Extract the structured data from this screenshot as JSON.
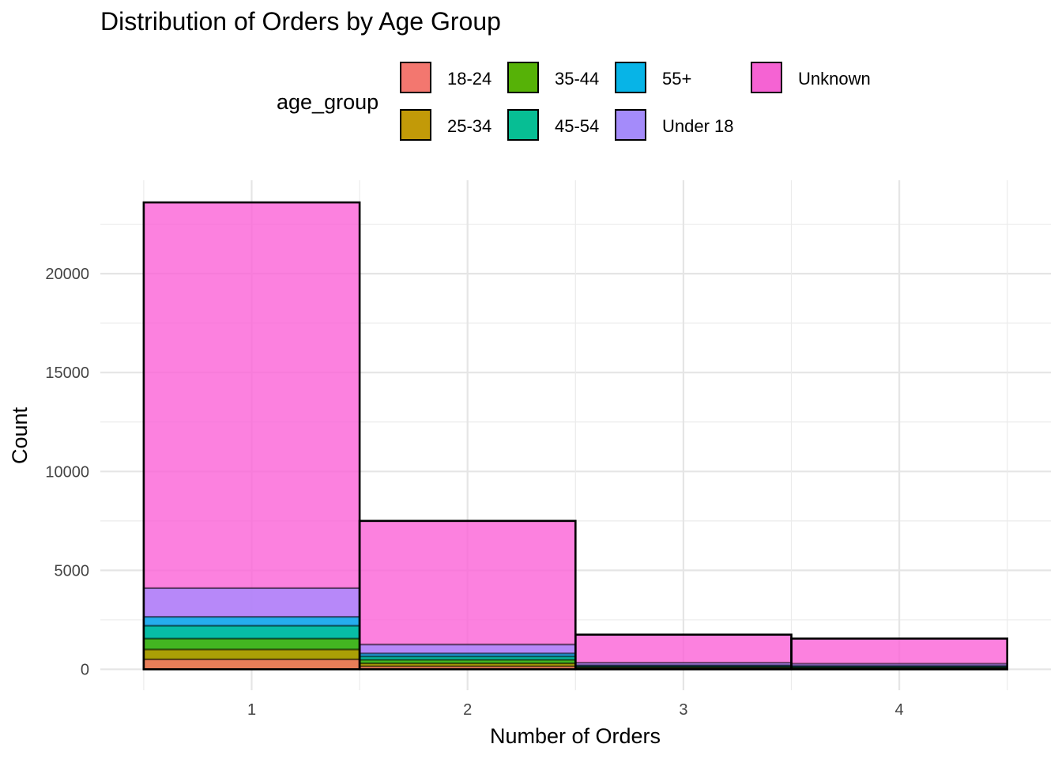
{
  "chart_data": {
    "type": "bar",
    "title": "Distribution of Orders by Age Group",
    "xlabel": "Number of Orders",
    "ylabel": "Count",
    "x_ticks": [
      "1",
      "2",
      "3",
      "4"
    ],
    "y_ticks": [
      "0",
      "5000",
      "10000",
      "15000",
      "20000"
    ],
    "xlim": [
      0.5,
      4.5
    ],
    "ylim": [
      0,
      24000
    ],
    "grid": true,
    "legend": {
      "title": "age_group",
      "placement": "top",
      "items": [
        {
          "label": "18-24",
          "color": "#F8766D"
        },
        {
          "label": "25-34",
          "color": "#C49A00"
        },
        {
          "label": "35-44",
          "color": "#53B400"
        },
        {
          "label": "45-54",
          "color": "#00C094"
        },
        {
          "label": "55+",
          "color": "#00B6EB"
        },
        {
          "label": "Under 18",
          "color": "#A58AFF"
        },
        {
          "label": "Unknown",
          "color": "#FB61D7"
        }
      ]
    },
    "bar_opacity": 0.8,
    "categories": [
      1,
      2,
      3,
      4
    ],
    "series": [
      {
        "name": "Unknown",
        "color": "#FB61D7",
        "values": [
          23600,
          7500,
          1750,
          1550
        ]
      },
      {
        "name": "Under 18",
        "color": "#A58AFF",
        "values": [
          4100,
          1250,
          330,
          280
        ]
      },
      {
        "name": "55+",
        "color": "#00B6EB",
        "values": [
          2650,
          800,
          200,
          170
        ]
      },
      {
        "name": "45-54",
        "color": "#00C094",
        "values": [
          2200,
          650,
          160,
          130
        ]
      },
      {
        "name": "35-44",
        "color": "#53B400",
        "values": [
          1550,
          480,
          110,
          90
        ]
      },
      {
        "name": "25-34",
        "color": "#C49A00",
        "values": [
          1000,
          300,
          80,
          60
        ]
      },
      {
        "name": "18-24",
        "color": "#F8766D",
        "values": [
          500,
          150,
          40,
          30
        ]
      }
    ]
  }
}
